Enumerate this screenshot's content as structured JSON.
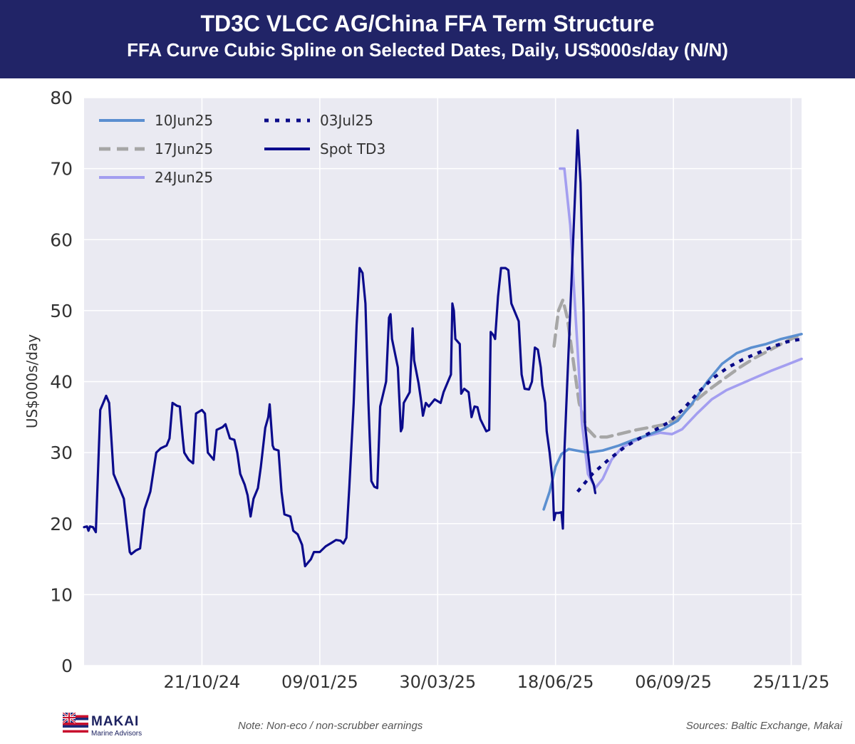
{
  "header": {
    "title": "TD3C VLCC AG/China FFA Term Structure",
    "subtitle": "FFA Curve Cubic Spline on Selected Dates, Daily, US$000s/day (N/N)"
  },
  "footer": {
    "logo_name": "MAKAI",
    "logo_sub": "Marine Advisors",
    "note": "Note: Non-eco / non-scrubber earnings",
    "sources": "Sources: Baltic Exchange, Makai"
  },
  "chart_data": {
    "type": "line",
    "title": "TD3C VLCC AG/China FFA Term Structure",
    "subtitle": "FFA Curve Cubic Spline on Selected Dates, Daily, US$000s/day (N/N)",
    "ylabel": "US$000s/day",
    "xlabel": "",
    "ylim": [
      0,
      80
    ],
    "yticks": [
      0,
      10,
      20,
      30,
      40,
      50,
      60,
      70,
      80
    ],
    "xlim": [
      "2024-08-02",
      "2025-12-02"
    ],
    "xticks": [
      "2024-10-21",
      "2025-01-09",
      "2025-03-30",
      "2025-06-18",
      "2025-09-06",
      "2025-11-25"
    ],
    "xtick_labels": [
      "21/10/24",
      "09/01/25",
      "30/03/25",
      "18/06/25",
      "06/09/25",
      "25/11/25"
    ],
    "grid": true,
    "legend_position": "top-left",
    "series": [
      {
        "name": "10Jun25",
        "style": "solid",
        "color": "#5b8fd0",
        "points": [
          [
            "2025-06-10",
            22
          ],
          [
            "2025-06-14",
            24.5
          ],
          [
            "2025-06-18",
            28
          ],
          [
            "2025-06-22",
            29.8
          ],
          [
            "2025-06-27",
            30.5
          ],
          [
            "2025-07-02",
            30.3
          ],
          [
            "2025-07-10",
            30
          ],
          [
            "2025-07-20",
            30.3
          ],
          [
            "2025-07-31",
            31
          ],
          [
            "2025-08-10",
            31.8
          ],
          [
            "2025-08-20",
            32.5
          ],
          [
            "2025-08-30",
            33.3
          ],
          [
            "2025-09-09",
            34.5
          ],
          [
            "2025-09-19",
            37
          ],
          [
            "2025-09-29",
            40
          ],
          [
            "2025-10-09",
            42.5
          ],
          [
            "2025-10-19",
            44
          ],
          [
            "2025-10-29",
            44.8
          ],
          [
            "2025-11-08",
            45.3
          ],
          [
            "2025-11-18",
            46
          ],
          [
            "2025-12-02",
            46.7
          ]
        ]
      },
      {
        "name": "17Jun25",
        "style": "dashed",
        "color": "#a6a6a6",
        "points": [
          [
            "2025-06-17",
            45
          ],
          [
            "2025-06-20",
            50
          ],
          [
            "2025-06-23",
            51.5
          ],
          [
            "2025-06-26",
            49
          ],
          [
            "2025-06-30",
            43
          ],
          [
            "2025-07-04",
            37
          ],
          [
            "2025-07-09",
            33.5
          ],
          [
            "2025-07-15",
            32.2
          ],
          [
            "2025-07-23",
            32.2
          ],
          [
            "2025-08-02",
            32.7
          ],
          [
            "2025-08-12",
            33.2
          ],
          [
            "2025-08-22",
            33.6
          ],
          [
            "2025-09-01",
            34
          ],
          [
            "2025-09-11",
            35.2
          ],
          [
            "2025-09-21",
            37.3
          ],
          [
            "2025-10-01",
            39
          ],
          [
            "2025-10-11",
            40.5
          ],
          [
            "2025-10-21",
            42
          ],
          [
            "2025-10-31",
            43.3
          ],
          [
            "2025-11-10",
            44.4
          ],
          [
            "2025-11-20",
            45.5
          ],
          [
            "2025-12-02",
            46.7
          ]
        ]
      },
      {
        "name": "24Jun25",
        "style": "solid",
        "color": "#a39ef0",
        "points": [
          [
            "2025-06-21",
            70
          ],
          [
            "2025-06-24",
            70
          ],
          [
            "2025-06-28",
            62
          ],
          [
            "2025-07-02",
            48
          ],
          [
            "2025-07-06",
            34
          ],
          [
            "2025-07-10",
            27
          ],
          [
            "2025-07-15",
            25
          ],
          [
            "2025-07-20",
            26.3
          ],
          [
            "2025-07-26",
            29
          ],
          [
            "2025-08-02",
            30.7
          ],
          [
            "2025-08-10",
            31.6
          ],
          [
            "2025-08-18",
            32.3
          ],
          [
            "2025-08-28",
            32.8
          ],
          [
            "2025-09-05",
            32.6
          ],
          [
            "2025-09-12",
            33.3
          ],
          [
            "2025-09-22",
            35.5
          ],
          [
            "2025-10-02",
            37.5
          ],
          [
            "2025-10-12",
            38.8
          ],
          [
            "2025-10-22",
            39.7
          ],
          [
            "2025-11-01",
            40.6
          ],
          [
            "2025-11-11",
            41.5
          ],
          [
            "2025-11-21",
            42.3
          ],
          [
            "2025-12-02",
            43.2
          ]
        ]
      },
      {
        "name": "03Jul25",
        "style": "dotted",
        "color": "#0a0a88",
        "points": [
          [
            "2025-07-03",
            24.5
          ],
          [
            "2025-07-13",
            27
          ],
          [
            "2025-07-24",
            29
          ],
          [
            "2025-08-04",
            30.8
          ],
          [
            "2025-08-14",
            32
          ],
          [
            "2025-08-24",
            33.1
          ],
          [
            "2025-09-03",
            34.3
          ],
          [
            "2025-09-13",
            36.2
          ],
          [
            "2025-09-23",
            38.5
          ],
          [
            "2025-10-03",
            40.5
          ],
          [
            "2025-10-13",
            42
          ],
          [
            "2025-10-23",
            43.1
          ],
          [
            "2025-11-02",
            44
          ],
          [
            "2025-11-12",
            44.9
          ],
          [
            "2025-11-22",
            45.6
          ],
          [
            "2025-12-02",
            46
          ]
        ]
      },
      {
        "name": "Spot TD3",
        "style": "solid",
        "color": "#0b0b8c",
        "points": [
          [
            "2024-08-02",
            19.5
          ],
          [
            "2024-08-04",
            19.6
          ],
          [
            "2024-08-05",
            19
          ],
          [
            "2024-08-06",
            19.6
          ],
          [
            "2024-08-08",
            19.5
          ],
          [
            "2024-08-10",
            18.8
          ],
          [
            "2024-08-13",
            36
          ],
          [
            "2024-08-15",
            37
          ],
          [
            "2024-08-17",
            38
          ],
          [
            "2024-08-19",
            37
          ],
          [
            "2024-08-22",
            27
          ],
          [
            "2024-08-24",
            26
          ],
          [
            "2024-08-26",
            25
          ],
          [
            "2024-08-29",
            23.5
          ],
          [
            "2024-09-02",
            16
          ],
          [
            "2024-09-03",
            15.7
          ],
          [
            "2024-09-06",
            16.2
          ],
          [
            "2024-09-09",
            16.5
          ],
          [
            "2024-09-12",
            22
          ],
          [
            "2024-09-16",
            24.5
          ],
          [
            "2024-09-20",
            30
          ],
          [
            "2024-09-23",
            30.6
          ],
          [
            "2024-09-27",
            31
          ],
          [
            "2024-09-29",
            32
          ],
          [
            "2024-10-01",
            37
          ],
          [
            "2024-10-04",
            36.6
          ],
          [
            "2024-10-06",
            36.5
          ],
          [
            "2024-10-08",
            32
          ],
          [
            "2024-10-09",
            30
          ],
          [
            "2024-10-12",
            29
          ],
          [
            "2024-10-15",
            28.5
          ],
          [
            "2024-10-17",
            35.5
          ],
          [
            "2024-10-21",
            36
          ],
          [
            "2024-10-23",
            35.5
          ],
          [
            "2024-10-25",
            30
          ],
          [
            "2024-10-27",
            29.5
          ],
          [
            "2024-10-29",
            29
          ],
          [
            "2024-10-31",
            33.2
          ],
          [
            "2024-11-04",
            33.6
          ],
          [
            "2024-11-06",
            34
          ],
          [
            "2024-11-09",
            32
          ],
          [
            "2024-11-12",
            31.8
          ],
          [
            "2024-11-14",
            30
          ],
          [
            "2024-11-16",
            27
          ],
          [
            "2024-11-19",
            25.5
          ],
          [
            "2024-11-21",
            24
          ],
          [
            "2024-11-23",
            21
          ],
          [
            "2024-11-25",
            23.5
          ],
          [
            "2024-11-28",
            25
          ],
          [
            "2024-11-30",
            28
          ],
          [
            "2024-12-03",
            33.5
          ],
          [
            "2024-12-05",
            35
          ],
          [
            "2024-12-06",
            36.8
          ],
          [
            "2024-12-08",
            31
          ],
          [
            "2024-12-09",
            30.5
          ],
          [
            "2024-12-12",
            30.3
          ],
          [
            "2024-12-14",
            24.5
          ],
          [
            "2024-12-16",
            21.3
          ],
          [
            "2024-12-20",
            21
          ],
          [
            "2024-12-22",
            19
          ],
          [
            "2024-12-25",
            18.5
          ],
          [
            "2024-12-28",
            17
          ],
          [
            "2024-12-30",
            14
          ],
          [
            "2025-01-01",
            14.5
          ],
          [
            "2025-01-03",
            15
          ],
          [
            "2025-01-05",
            16
          ],
          [
            "2025-01-09",
            16
          ],
          [
            "2025-01-13",
            16.8
          ],
          [
            "2025-01-17",
            17.3
          ],
          [
            "2025-01-20",
            17.7
          ],
          [
            "2025-01-23",
            17.6
          ],
          [
            "2025-01-25",
            17.2
          ],
          [
            "2025-01-27",
            18
          ],
          [
            "2025-01-29",
            25
          ],
          [
            "2025-02-01",
            37
          ],
          [
            "2025-02-03",
            48
          ],
          [
            "2025-02-04",
            52
          ],
          [
            "2025-02-05",
            56
          ],
          [
            "2025-02-07",
            55.3
          ],
          [
            "2025-02-09",
            51
          ],
          [
            "2025-02-11",
            37
          ],
          [
            "2025-02-13",
            26
          ],
          [
            "2025-02-15",
            25.2
          ],
          [
            "2025-02-17",
            25
          ],
          [
            "2025-02-19",
            36.5
          ],
          [
            "2025-02-23",
            40
          ],
          [
            "2025-02-25",
            49
          ],
          [
            "2025-02-26",
            49.5
          ],
          [
            "2025-02-27",
            46
          ],
          [
            "2025-03-01",
            44
          ],
          [
            "2025-03-03",
            42
          ],
          [
            "2025-03-05",
            33
          ],
          [
            "2025-03-06",
            33.5
          ],
          [
            "2025-03-07",
            37
          ],
          [
            "2025-03-11",
            38.5
          ],
          [
            "2025-03-13",
            47.5
          ],
          [
            "2025-03-14",
            43
          ],
          [
            "2025-03-17",
            39.8
          ],
          [
            "2025-03-19",
            37
          ],
          [
            "2025-03-20",
            35.2
          ],
          [
            "2025-03-22",
            37
          ],
          [
            "2025-03-24",
            36.5
          ],
          [
            "2025-03-28",
            37.5
          ],
          [
            "2025-04-01",
            37
          ],
          [
            "2025-04-03",
            38.5
          ],
          [
            "2025-04-06",
            40
          ],
          [
            "2025-04-08",
            41
          ],
          [
            "2025-04-09",
            51
          ],
          [
            "2025-04-10",
            50
          ],
          [
            "2025-04-11",
            46
          ],
          [
            "2025-04-14",
            45.3
          ],
          [
            "2025-04-15",
            38.3
          ],
          [
            "2025-04-17",
            39
          ],
          [
            "2025-04-20",
            38.5
          ],
          [
            "2025-04-22",
            35
          ],
          [
            "2025-04-24",
            36.5
          ],
          [
            "2025-04-26",
            36.4
          ],
          [
            "2025-04-28",
            34.7
          ],
          [
            "2025-05-02",
            33
          ],
          [
            "2025-05-04",
            33.2
          ],
          [
            "2025-05-05",
            47
          ],
          [
            "2025-05-07",
            46.5
          ],
          [
            "2025-05-08",
            46
          ],
          [
            "2025-05-10",
            52
          ],
          [
            "2025-05-12",
            56
          ],
          [
            "2025-05-15",
            56
          ],
          [
            "2025-05-17",
            55.7
          ],
          [
            "2025-05-19",
            51
          ],
          [
            "2025-05-22",
            49.5
          ],
          [
            "2025-05-24",
            48.5
          ],
          [
            "2025-05-26",
            41
          ],
          [
            "2025-05-28",
            39
          ],
          [
            "2025-05-31",
            38.9
          ],
          [
            "2025-06-02",
            40
          ],
          [
            "2025-06-04",
            44.8
          ],
          [
            "2025-06-06",
            44.5
          ],
          [
            "2025-06-08",
            42
          ],
          [
            "2025-06-09",
            39.5
          ],
          [
            "2025-06-11",
            37
          ],
          [
            "2025-06-12",
            33
          ],
          [
            "2025-06-14",
            30
          ],
          [
            "2025-06-16",
            26
          ],
          [
            "2025-06-17",
            20.5
          ],
          [
            "2025-06-18",
            21.5
          ],
          [
            "2025-06-20",
            21.5
          ],
          [
            "2025-06-22",
            21.6
          ],
          [
            "2025-06-23",
            19.3
          ],
          [
            "2025-06-24",
            30
          ],
          [
            "2025-06-26",
            40
          ],
          [
            "2025-06-28",
            50
          ],
          [
            "2025-06-30",
            60
          ],
          [
            "2025-07-02",
            70
          ],
          [
            "2025-07-03",
            75.4
          ],
          [
            "2025-07-05",
            68
          ],
          [
            "2025-07-07",
            50
          ],
          [
            "2025-07-08",
            34
          ],
          [
            "2025-07-10",
            30
          ],
          [
            "2025-07-12",
            26.5
          ],
          [
            "2025-07-14",
            25.5
          ],
          [
            "2025-07-15",
            24.3
          ]
        ]
      }
    ]
  }
}
